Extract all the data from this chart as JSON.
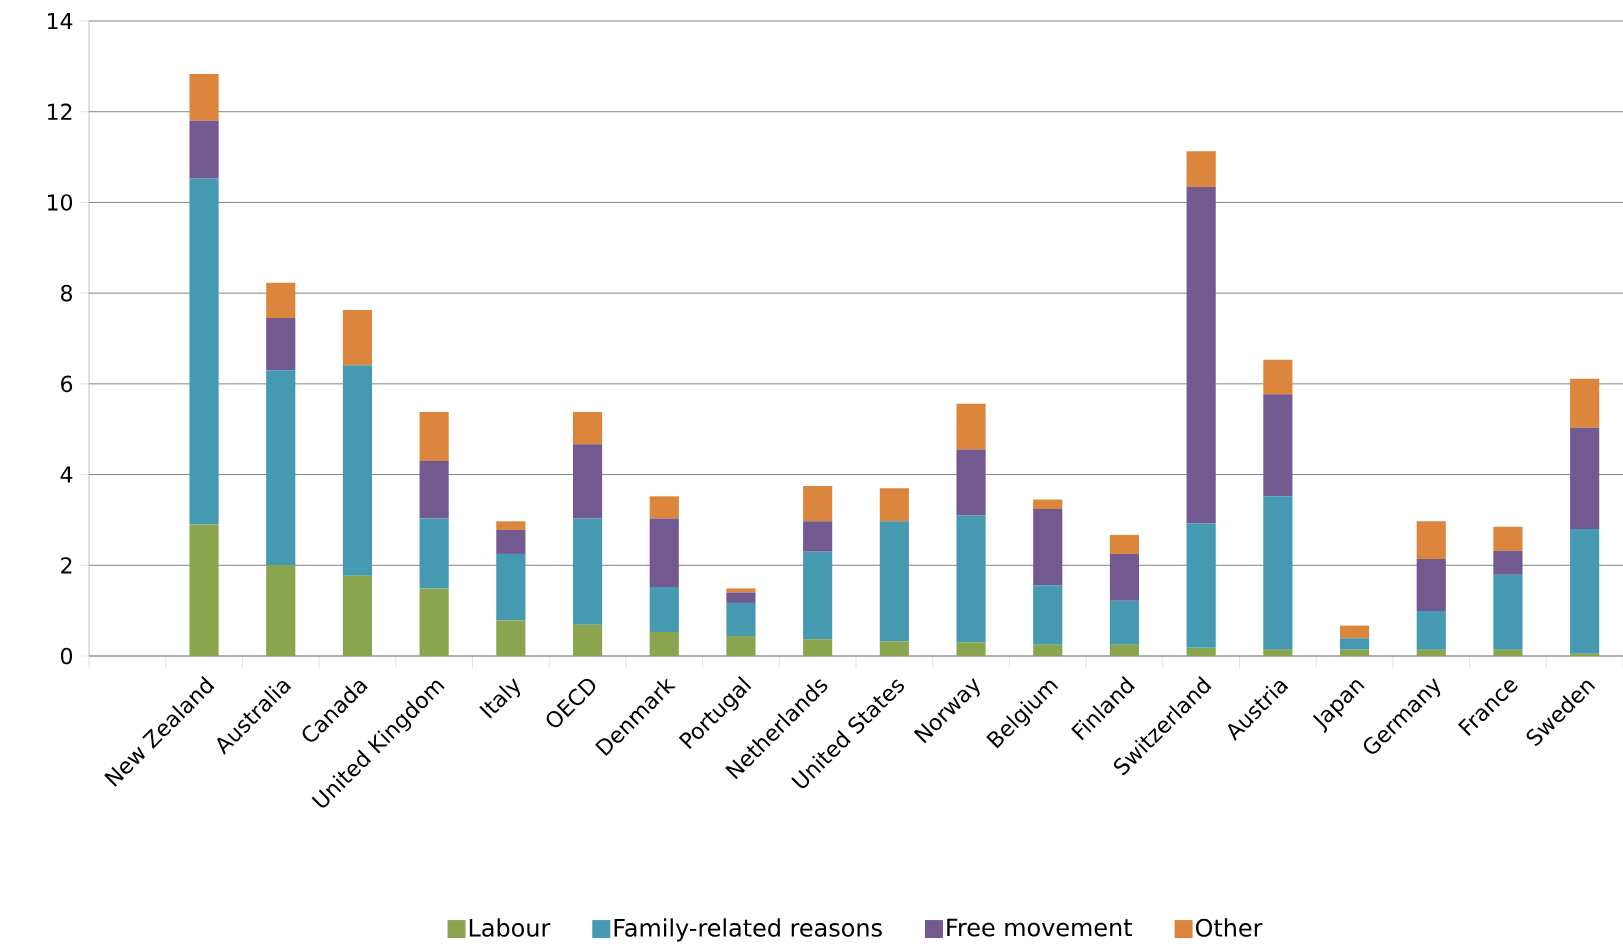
{
  "chart_data": {
    "type": "bar",
    "stacked": true,
    "categories": [
      null,
      "New Zealand",
      "Australia",
      "Canada",
      "United Kingdom",
      "Italy",
      "OECD",
      "Denmark",
      "Portugal",
      "Netherlands",
      "United States",
      "Norway",
      "Belgium",
      "Finland",
      "Switzerland",
      "Austria",
      "Japan",
      "Germany",
      "France",
      "Sweden"
    ],
    "series": [
      {
        "name": "Labour",
        "color": "#8ba54e",
        "values": [
          null,
          2.9,
          2.0,
          1.77,
          1.49,
          0.78,
          0.69,
          0.53,
          0.44,
          0.37,
          0.32,
          0.3,
          0.25,
          0.25,
          0.18,
          0.14,
          0.14,
          0.14,
          0.14,
          0.05
        ]
      },
      {
        "name": "Family-related reasons",
        "color": "#4599b0",
        "values": [
          null,
          7.63,
          4.3,
          4.64,
          1.54,
          1.47,
          2.34,
          0.99,
          0.73,
          1.93,
          2.65,
          2.8,
          1.31,
          0.97,
          2.74,
          3.38,
          0.25,
          0.85,
          1.65,
          2.75
        ]
      },
      {
        "name": "Free movement",
        "color": "#72598f",
        "values": [
          null,
          1.27,
          1.15,
          0,
          1.27,
          0.53,
          1.64,
          1.51,
          0.23,
          0.67,
          0,
          1.45,
          1.68,
          1.03,
          7.42,
          2.25,
          0,
          1.15,
          0.53,
          2.23
        ]
      },
      {
        "name": "Other",
        "color": "#db853d",
        "values": [
          null,
          1.03,
          0.78,
          1.22,
          1.08,
          0.19,
          0.71,
          0.49,
          0.09,
          0.78,
          0.73,
          1.01,
          0.21,
          0.42,
          0.79,
          0.76,
          0.28,
          0.83,
          0.53,
          1.08
        ]
      }
    ],
    "ylim": [
      0,
      14
    ],
    "yticks": [
      0,
      2,
      4,
      6,
      8,
      10,
      12,
      14
    ],
    "grid": "y",
    "legend": "bottom"
  }
}
